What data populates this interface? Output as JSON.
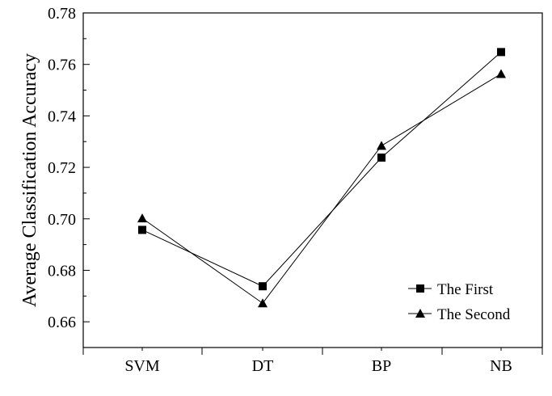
{
  "chart_data": {
    "type": "line",
    "title": "",
    "xlabel": "",
    "ylabel": "Average Classification Accuracy",
    "categories": [
      "SVM",
      "DT",
      "BP",
      "NB"
    ],
    "ylim": [
      0.65,
      0.78
    ],
    "yticks": [
      "0.66",
      "0.68",
      "0.70",
      "0.72",
      "0.74",
      "0.76",
      "0.78"
    ],
    "grid": false,
    "legend_position": "bottom-right",
    "series": [
      {
        "name": "The First",
        "marker": "square",
        "values": [
          0.6957,
          0.6738,
          0.7238,
          0.7648
        ]
      },
      {
        "name": "The Second",
        "marker": "triangle",
        "values": [
          0.7002,
          0.6672,
          0.7284,
          0.7563
        ]
      }
    ]
  }
}
